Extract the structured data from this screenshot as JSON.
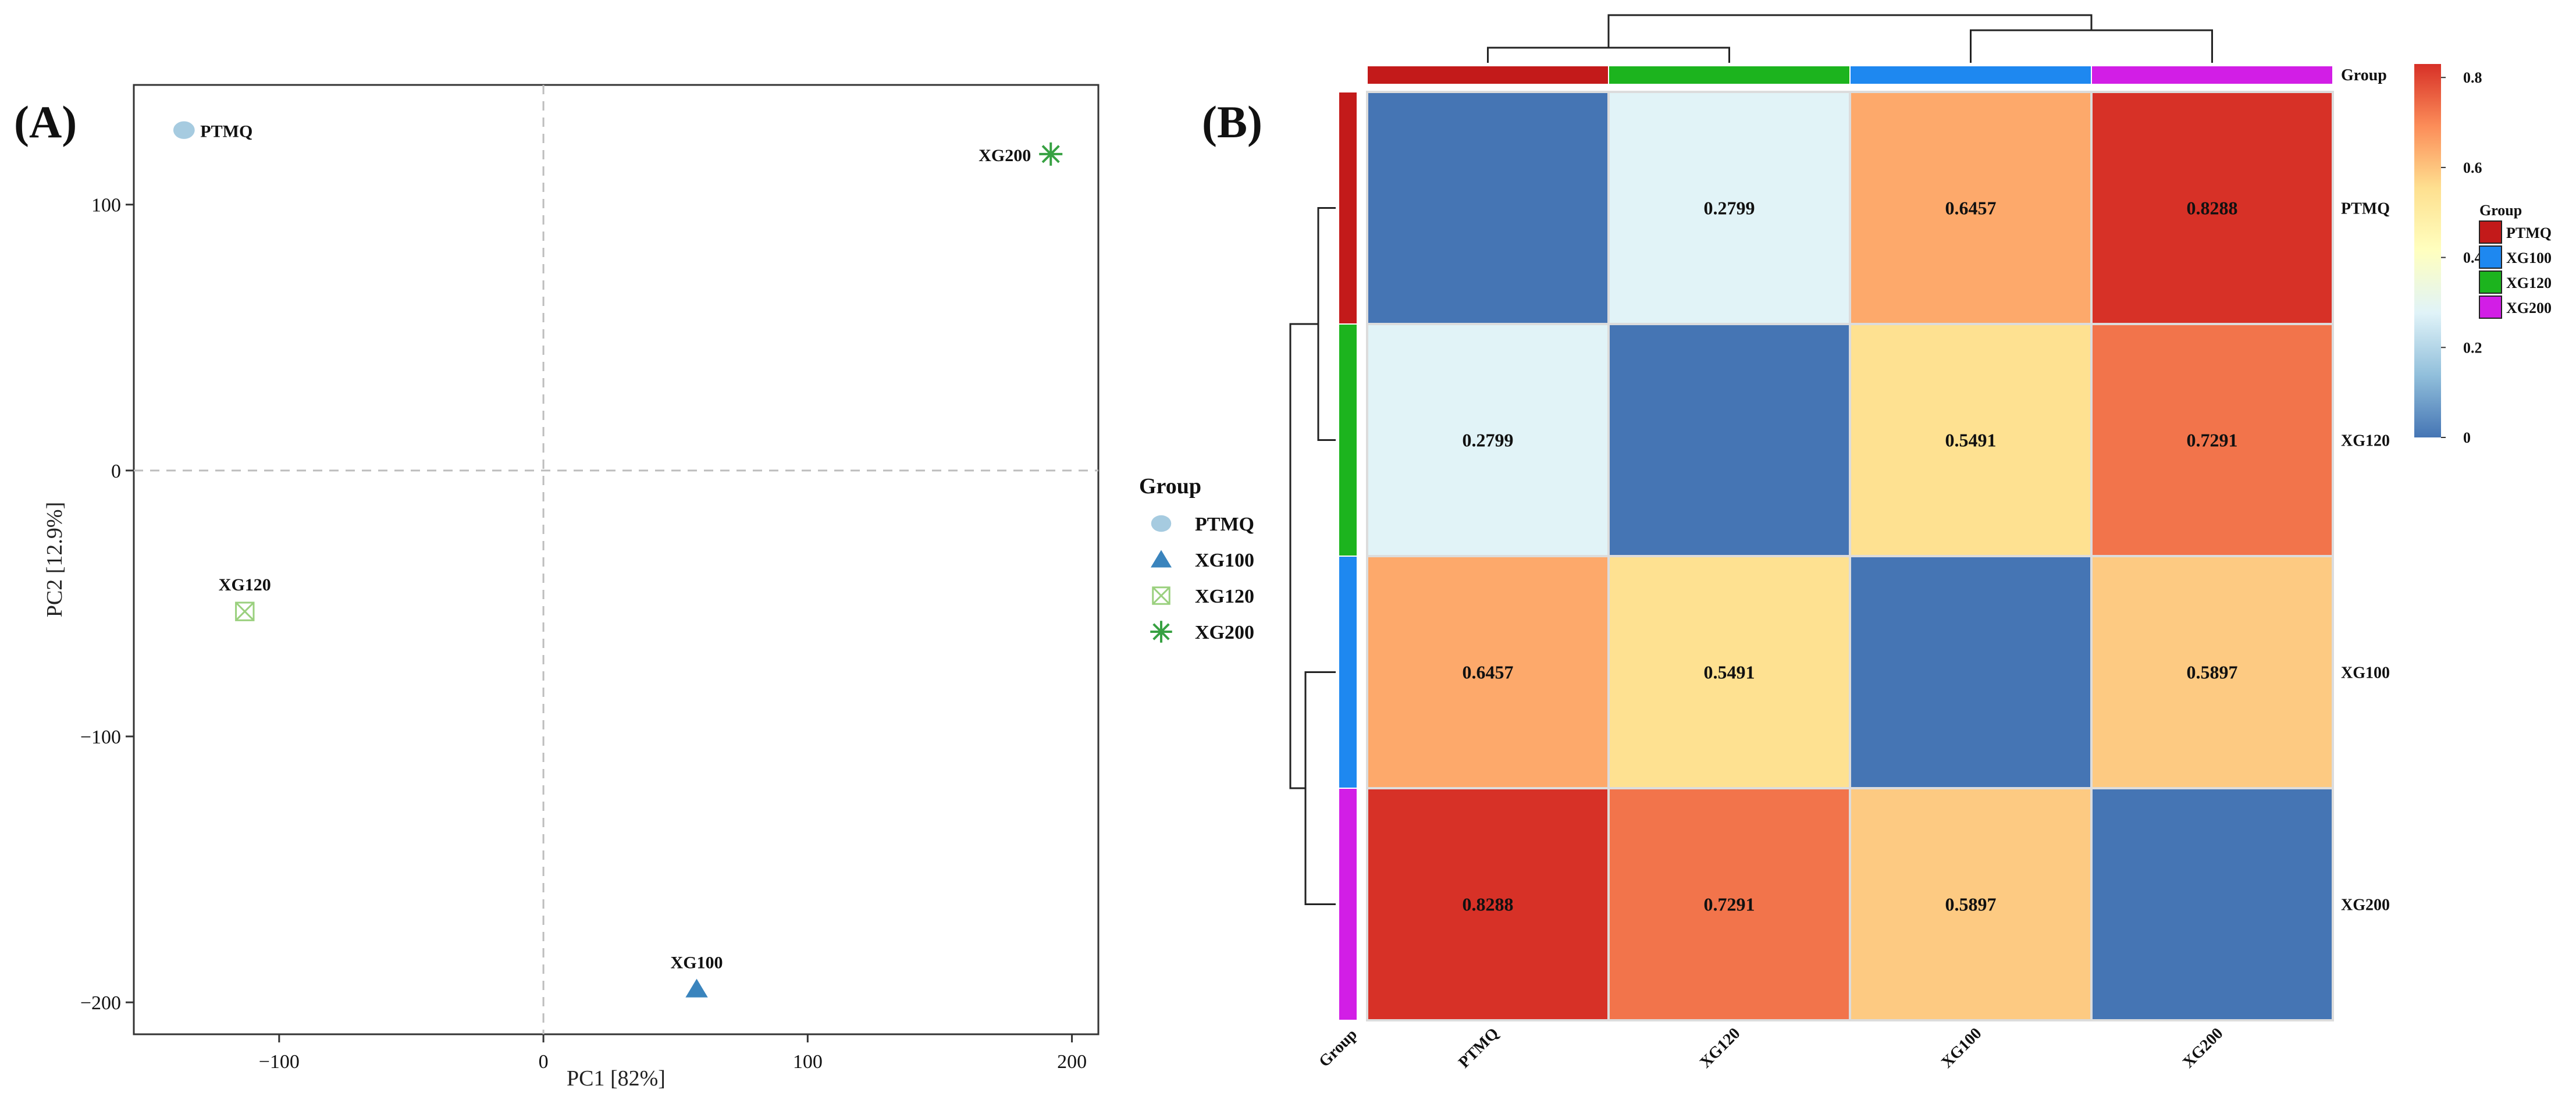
{
  "panels": {
    "a_label": "(A)",
    "b_label": "(B)"
  },
  "chart_data": [
    {
      "type": "scatter",
      "xlabel": "PC1 [82%]",
      "ylabel": "PC2 [12.9%]",
      "xlim": [
        -155,
        210
      ],
      "ylim": [
        -212,
        145
      ],
      "xticks": [
        -100,
        0,
        100,
        200
      ],
      "yticks": [
        100,
        0,
        -100,
        -200
      ],
      "xtick_labels": [
        "−100",
        "0",
        "100",
        "200"
      ],
      "ytick_labels": [
        "100",
        "0",
        "−100",
        "−200"
      ],
      "zero_lines": true,
      "grid": false,
      "legend_title": "Group",
      "legend_position": "right",
      "points": [
        {
          "label": "PTMQ",
          "x": -136,
          "y": 128,
          "group": "PTMQ",
          "marker": "circle",
          "color": "#a6cbe0"
        },
        {
          "label": "XG100",
          "x": 58,
          "y": -195,
          "group": "XG100",
          "marker": "triangle",
          "color": "#3a84bd"
        },
        {
          "label": "XG120",
          "x": -113,
          "y": -53,
          "group": "XG120",
          "marker": "square-x",
          "color": "#9ad07e"
        },
        {
          "label": "XG200",
          "x": 192,
          "y": 119,
          "group": "XG200",
          "marker": "asterisk",
          "color": "#37a142"
        }
      ],
      "legend": [
        {
          "name": "PTMQ",
          "marker": "circle",
          "color": "#a6cbe0"
        },
        {
          "name": "XG100",
          "marker": "triangle",
          "color": "#3a84bd"
        },
        {
          "name": "XG120",
          "marker": "square-x",
          "color": "#9ad07e"
        },
        {
          "name": "XG200",
          "marker": "asterisk",
          "color": "#37a142"
        }
      ]
    },
    {
      "type": "heatmap",
      "rows": [
        "PTMQ",
        "XG120",
        "XG100",
        "XG200"
      ],
      "columns": [
        "PTMQ",
        "XG120",
        "XG100",
        "XG200"
      ],
      "values": [
        [
          0,
          0.2799,
          0.6457,
          0.8288
        ],
        [
          0.2799,
          0,
          0.5491,
          0.7291
        ],
        [
          0.6457,
          0.5491,
          0,
          0.5897
        ],
        [
          0.8288,
          0.7291,
          0.5897,
          0
        ]
      ],
      "annotate_diagonal": false,
      "group_label": "Group",
      "group_colors": {
        "PTMQ": "#c31a1a",
        "XG100": "#1e88f0",
        "XG120": "#1cb41e",
        "XG200": "#d21ee6"
      },
      "group_legend_title": "Group",
      "group_legend": [
        "PTMQ",
        "XG100",
        "XG120",
        "XG200"
      ],
      "colorbar": {
        "ticks": [
          0,
          0.2,
          0.4,
          0.6,
          0.8
        ],
        "tick_labels": [
          "0",
          "0.2",
          "0.4",
          "0.6",
          "0.8"
        ],
        "range": [
          0,
          0.83
        ]
      },
      "colorscale": [
        "#4575b4",
        "#91bfdb",
        "#e0f3f8",
        "#ffffbf",
        "#fee090",
        "#fc8d59",
        "#d73027"
      ],
      "dendrogram": "complete"
    }
  ]
}
